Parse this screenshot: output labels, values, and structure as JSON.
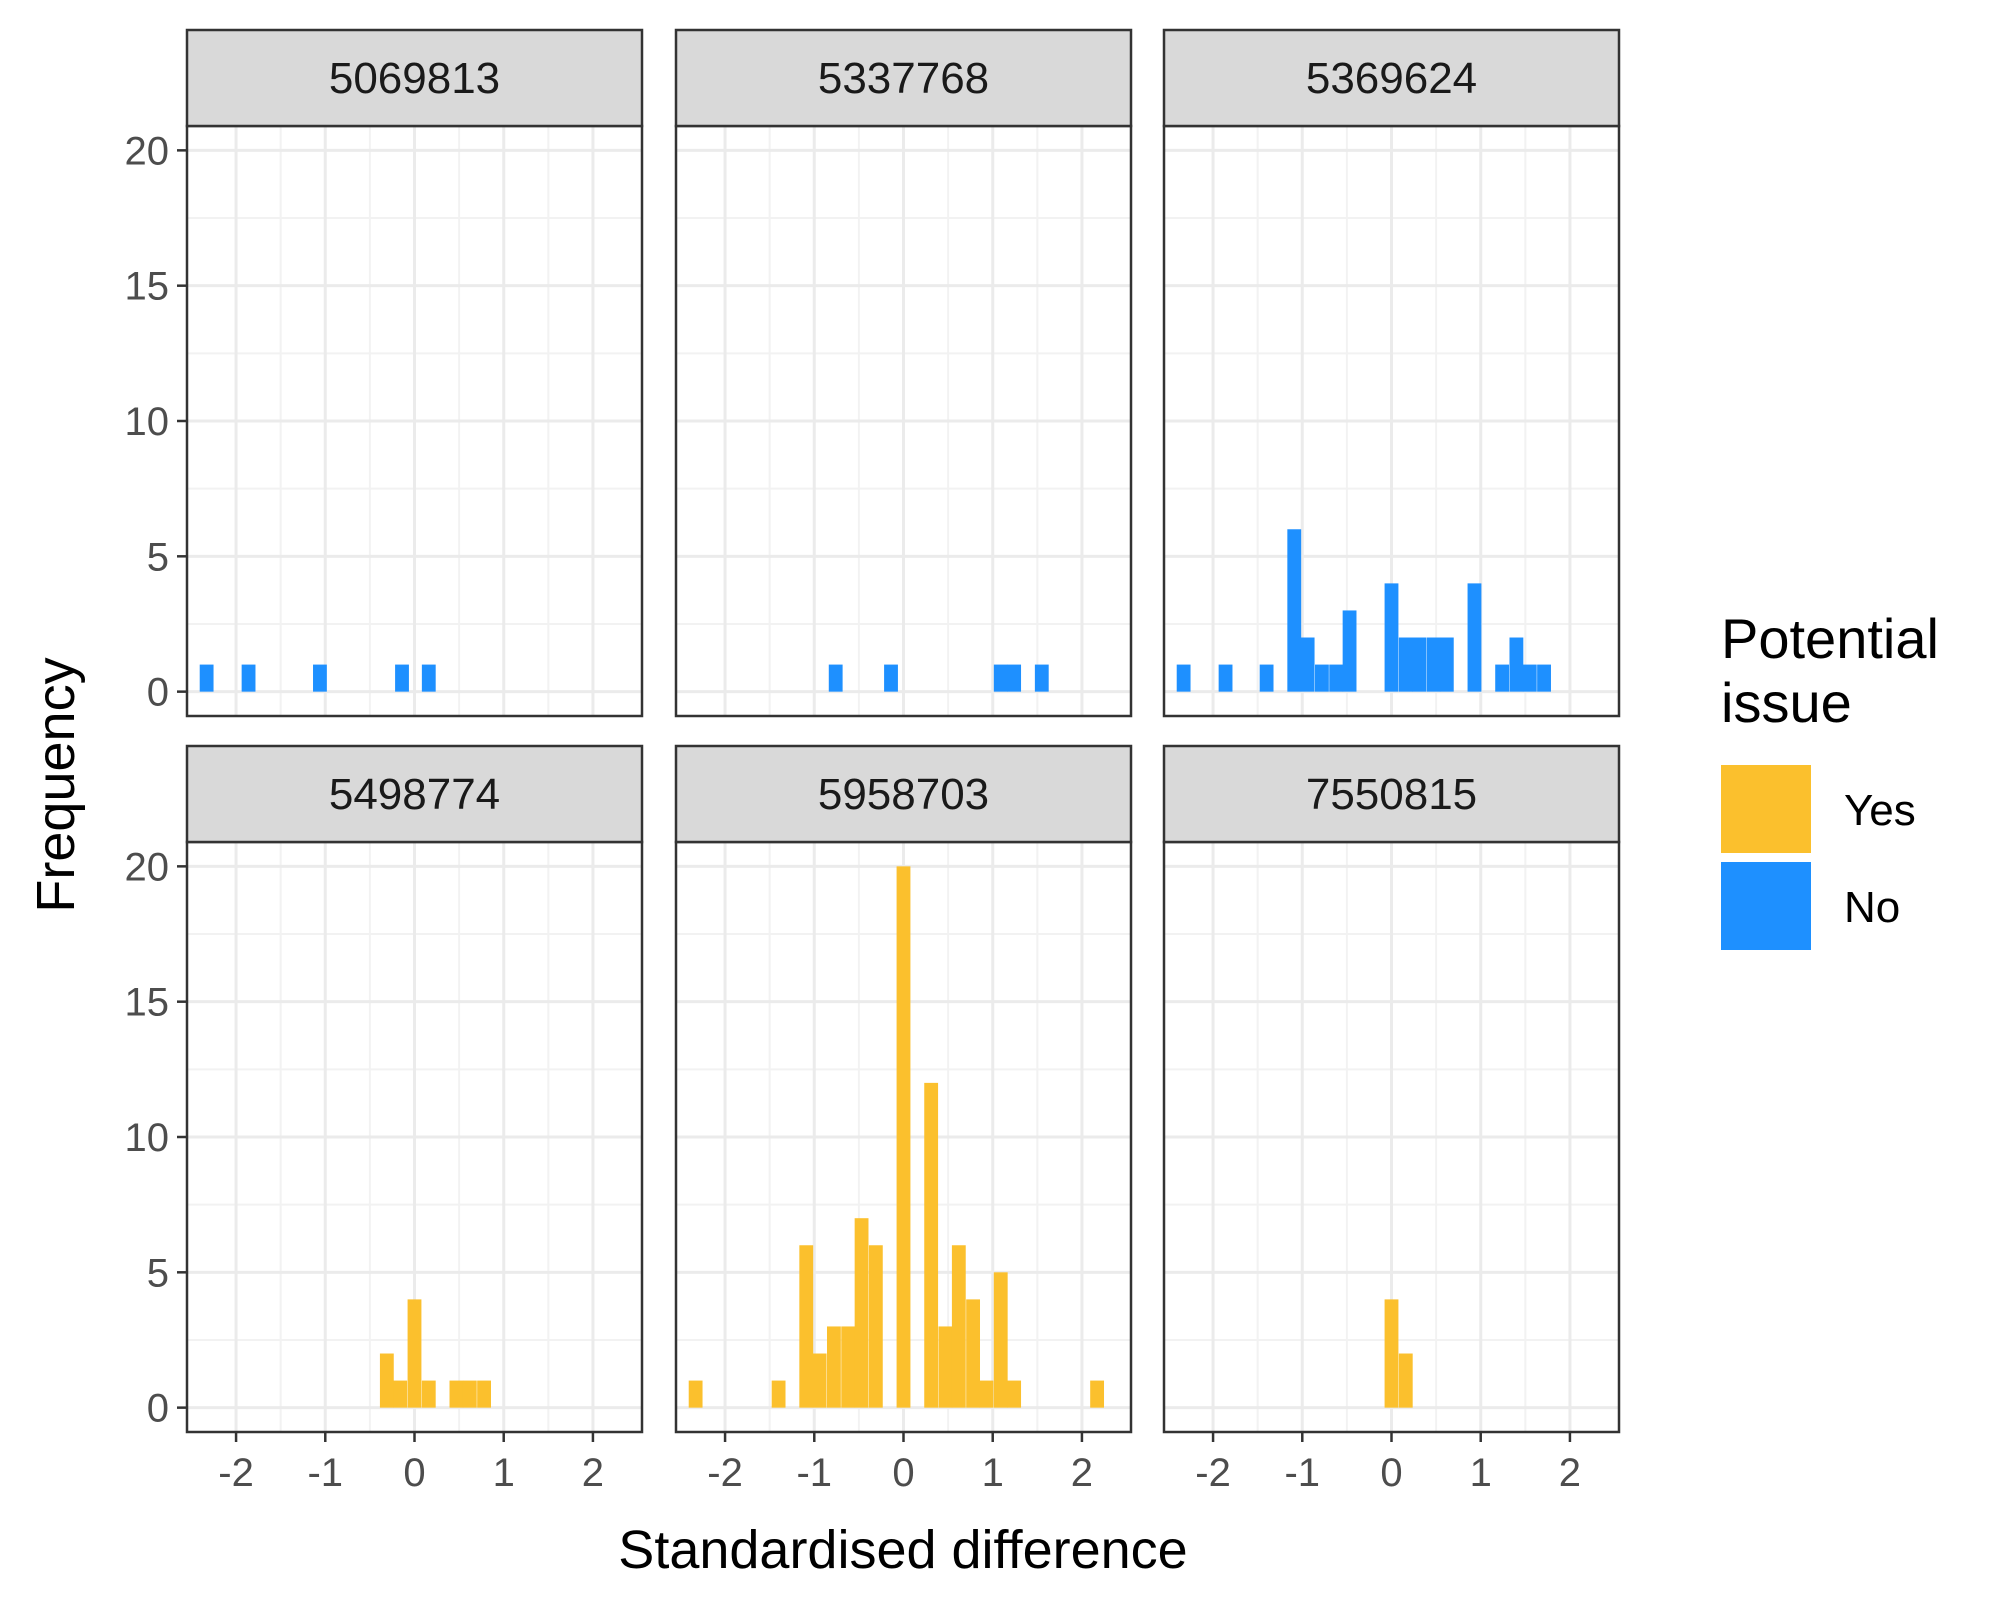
{
  "chart_data": {
    "type": "bar",
    "subtype": "faceted-histogram",
    "xlabel": "Standardised difference",
    "ylabel": "Frequency",
    "xlim": [
      -2.55,
      2.55
    ],
    "ylim": [
      -0.9,
      20.9
    ],
    "x_ticks": [
      "-2",
      "-1",
      "0",
      "1",
      "2"
    ],
    "y_ticks": [
      "0",
      "5",
      "10",
      "15",
      "20"
    ],
    "bin_width": 0.155,
    "grid": true,
    "legend": {
      "title_lines": [
        "Potential",
        "issue"
      ],
      "position": "right",
      "items": [
        {
          "label": "Yes",
          "color": "#FBC02D"
        },
        {
          "label": "No",
          "color": "#1E90FF"
        }
      ]
    },
    "facets": [
      {
        "label": "5069813",
        "issue": "No",
        "bins": [
          {
            "x": -2.33,
            "count": 1
          },
          {
            "x": -1.86,
            "count": 1
          },
          {
            "x": -1.06,
            "count": 1
          },
          {
            "x": -0.14,
            "count": 1
          },
          {
            "x": 0.16,
            "count": 1
          }
        ]
      },
      {
        "label": "5337768",
        "issue": "No",
        "bins": [
          {
            "x": -0.76,
            "count": 1
          },
          {
            "x": -0.14,
            "count": 1
          },
          {
            "x": 1.09,
            "count": 1
          },
          {
            "x": 1.24,
            "count": 1
          },
          {
            "x": 1.55,
            "count": 1
          }
        ]
      },
      {
        "label": "5369624",
        "issue": "No",
        "bins": [
          {
            "x": -2.33,
            "count": 1
          },
          {
            "x": -1.86,
            "count": 1
          },
          {
            "x": -1.4,
            "count": 1
          },
          {
            "x": -1.09,
            "count": 6
          },
          {
            "x": -0.94,
            "count": 2
          },
          {
            "x": -0.78,
            "count": 1
          },
          {
            "x": -0.62,
            "count": 1
          },
          {
            "x": -0.47,
            "count": 3
          },
          {
            "x": 0.0,
            "count": 4
          },
          {
            "x": 0.16,
            "count": 2
          },
          {
            "x": 0.31,
            "count": 2
          },
          {
            "x": 0.47,
            "count": 2
          },
          {
            "x": 0.62,
            "count": 2
          },
          {
            "x": 0.93,
            "count": 4
          },
          {
            "x": 1.24,
            "count": 1
          },
          {
            "x": 1.4,
            "count": 2
          },
          {
            "x": 1.55,
            "count": 1
          },
          {
            "x": 1.71,
            "count": 1
          }
        ]
      },
      {
        "label": "5498774",
        "issue": "Yes",
        "bins": [
          {
            "x": -0.31,
            "count": 2
          },
          {
            "x": -0.16,
            "count": 1
          },
          {
            "x": 0.0,
            "count": 4
          },
          {
            "x": 0.16,
            "count": 1
          },
          {
            "x": 0.47,
            "count": 1
          },
          {
            "x": 0.62,
            "count": 1
          },
          {
            "x": 0.78,
            "count": 1
          }
        ]
      },
      {
        "label": "5958703",
        "issue": "Yes",
        "bins": [
          {
            "x": -2.33,
            "count": 1
          },
          {
            "x": -1.4,
            "count": 1
          },
          {
            "x": -1.09,
            "count": 6
          },
          {
            "x": -0.94,
            "count": 2
          },
          {
            "x": -0.78,
            "count": 3
          },
          {
            "x": -0.62,
            "count": 3
          },
          {
            "x": -0.47,
            "count": 7
          },
          {
            "x": -0.31,
            "count": 6
          },
          {
            "x": 0.0,
            "count": 20
          },
          {
            "x": 0.31,
            "count": 12
          },
          {
            "x": 0.47,
            "count": 3
          },
          {
            "x": 0.62,
            "count": 6
          },
          {
            "x": 0.78,
            "count": 4
          },
          {
            "x": 0.93,
            "count": 1
          },
          {
            "x": 1.09,
            "count": 5
          },
          {
            "x": 1.24,
            "count": 1
          },
          {
            "x": 2.17,
            "count": 1
          }
        ]
      },
      {
        "label": "7550815",
        "issue": "Yes",
        "bins": [
          {
            "x": 0.0,
            "count": 4
          },
          {
            "x": 0.16,
            "count": 2
          }
        ]
      }
    ]
  }
}
